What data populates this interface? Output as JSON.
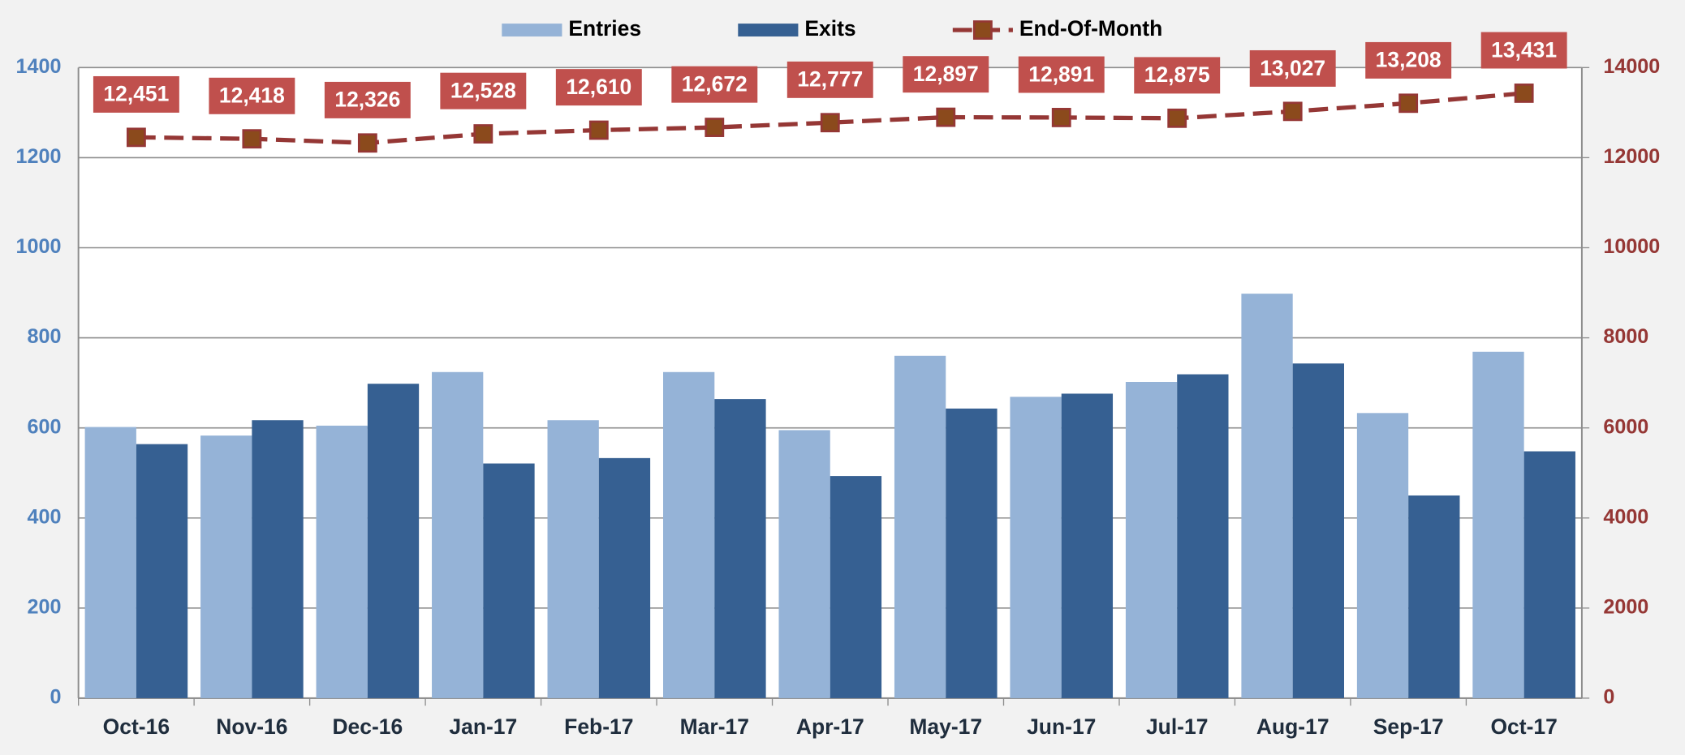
{
  "chart_data": {
    "type": "bar_line",
    "categories": [
      "Oct-16",
      "Nov-16",
      "Dec-16",
      "Jan-17",
      "Feb-17",
      "Mar-17",
      "Apr-17",
      "May-17",
      "Jun-17",
      "Jul-17",
      "Aug-17",
      "Sep-17",
      "Oct-17"
    ],
    "series": [
      {
        "name": "Entries",
        "color": "#95b3d7",
        "values": [
          602,
          583,
          605,
          724,
          617,
          724,
          595,
          760,
          669,
          702,
          898,
          633,
          769
        ]
      },
      {
        "name": "Exits",
        "color": "#366092",
        "values": [
          564,
          617,
          698,
          521,
          533,
          664,
          493,
          643,
          676,
          719,
          743,
          450,
          548
        ]
      },
      {
        "name": "End-Of-Month",
        "type": "line",
        "axis": "y2",
        "color": "#953735",
        "marker_color": "#8b4a1c",
        "label_color": "#c0504d",
        "values": [
          12451,
          12418,
          12326,
          12528,
          12610,
          12672,
          12777,
          12897,
          12891,
          12875,
          13027,
          13208,
          13431
        ],
        "value_labels": [
          "12,451",
          "12,418",
          "12,326",
          "12,528",
          "12,610",
          "12,672",
          "12,777",
          "12,897",
          "12,891",
          "12,875",
          "13,027",
          "13,208",
          "13,431"
        ]
      }
    ],
    "ylim": [
      0,
      1400
    ],
    "yticks": [
      0,
      200,
      400,
      600,
      800,
      1000,
      1200,
      1400
    ],
    "y2lim": [
      0,
      14000
    ],
    "y2ticks": [
      0,
      2000,
      4000,
      6000,
      8000,
      10000,
      12000,
      14000
    ],
    "grid": true,
    "legend": "top"
  }
}
